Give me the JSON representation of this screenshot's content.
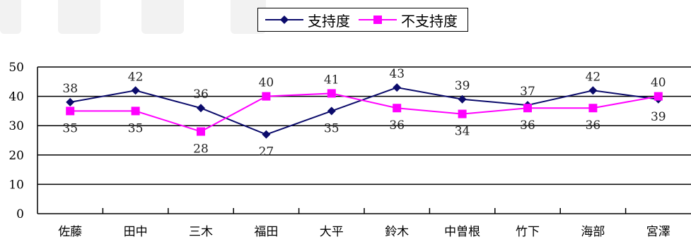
{
  "chart_data": {
    "type": "line",
    "categories": [
      "佐藤",
      "田中",
      "三木",
      "福田",
      "大平",
      "鈴木",
      "中曽根",
      "竹下",
      "海部",
      "宮澤"
    ],
    "series": [
      {
        "name": "支持度",
        "values": [
          38,
          42,
          36,
          27,
          35,
          43,
          39,
          37,
          42,
          39
        ],
        "color": "#0b0b6b",
        "marker": "diamond"
      },
      {
        "name": "不支持度",
        "values": [
          35,
          35,
          28,
          40,
          41,
          36,
          34,
          36,
          36,
          40
        ],
        "color": "#ff00ff",
        "marker": "square"
      }
    ],
    "y_ticks": [
      "0",
      "10",
      "20",
      "30",
      "40",
      "50"
    ],
    "ylim": [
      0,
      50
    ],
    "grid": true,
    "legend_position": "top-center",
    "data_labels": true
  }
}
